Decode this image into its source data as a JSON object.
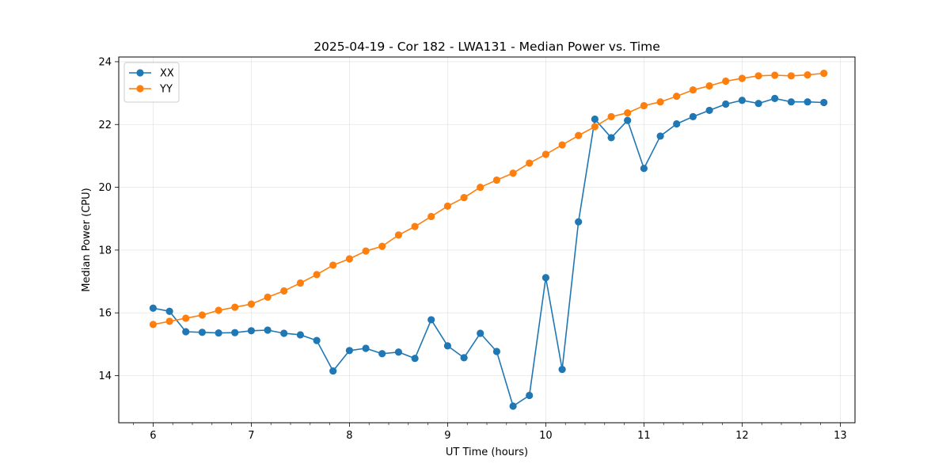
{
  "chart_data": {
    "type": "line",
    "title": "2025-04-19 - Cor 182 - LWA131 - Median Power vs. Time",
    "xlabel": "UT Time (hours)",
    "ylabel": "Median Power (CPU)",
    "xlim": [
      5.65,
      13.15
    ],
    "ylim": [
      12.5,
      24.15
    ],
    "xticks": [
      6,
      7,
      8,
      9,
      10,
      11,
      12,
      13
    ],
    "yticks": [
      14,
      16,
      18,
      20,
      22,
      24
    ],
    "xminor_step": 0.2,
    "grid": true,
    "legend_position": "upper-left",
    "x": [
      6.0,
      6.167,
      6.333,
      6.5,
      6.667,
      6.833,
      7.0,
      7.167,
      7.333,
      7.5,
      7.667,
      7.833,
      8.0,
      8.167,
      8.333,
      8.5,
      8.667,
      8.833,
      9.0,
      9.167,
      9.333,
      9.5,
      9.667,
      9.833,
      10.0,
      10.167,
      10.333,
      10.5,
      10.667,
      10.833,
      11.0,
      11.167,
      11.333,
      11.5,
      11.667,
      11.833,
      12.0,
      12.167,
      12.333,
      12.5,
      12.667,
      12.833
    ],
    "series": [
      {
        "name": "XX",
        "color": "#1f77b4",
        "values": [
          16.15,
          16.05,
          15.4,
          15.38,
          15.36,
          15.37,
          15.43,
          15.45,
          15.35,
          15.3,
          15.12,
          14.15,
          14.8,
          14.87,
          14.7,
          14.75,
          14.55,
          15.78,
          14.95,
          14.57,
          15.35,
          14.77,
          13.03,
          13.37,
          17.12,
          14.2,
          18.9,
          22.17,
          21.58,
          22.13,
          20.6,
          21.63,
          22.02,
          22.25,
          22.45,
          22.65,
          22.77,
          22.67,
          22.83,
          22.72,
          22.72,
          22.7
        ]
      },
      {
        "name": "YY",
        "color": "#ff7f0e",
        "values": [
          15.63,
          15.73,
          15.83,
          15.93,
          16.08,
          16.18,
          16.28,
          16.5,
          16.7,
          16.95,
          17.22,
          17.52,
          17.72,
          17.97,
          18.12,
          18.48,
          18.75,
          19.07,
          19.4,
          19.67,
          20.0,
          20.23,
          20.45,
          20.77,
          21.05,
          21.35,
          21.65,
          21.93,
          22.25,
          22.37,
          22.6,
          22.72,
          22.9,
          23.1,
          23.23,
          23.38,
          23.47,
          23.55,
          23.57,
          23.55,
          23.58,
          23.63
        ]
      }
    ]
  }
}
